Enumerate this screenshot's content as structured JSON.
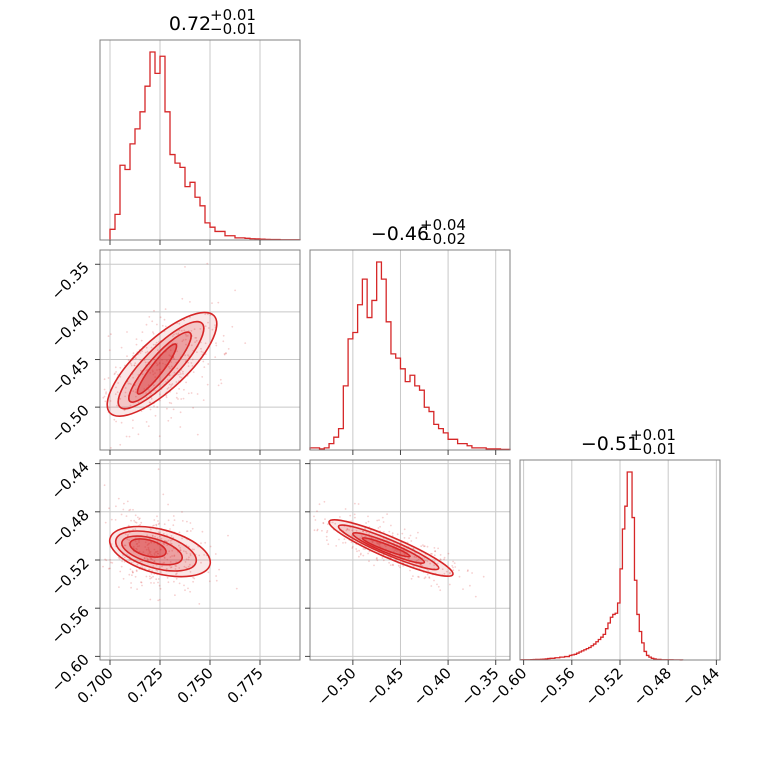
{
  "chart_data": {
    "type": "corner",
    "color": "#d62728",
    "parameters": [
      {
        "title": "0.72",
        "up": "+0.01",
        "down": "−0.01",
        "range": [
          0.695,
          0.795
        ]
      },
      {
        "title": "−0.46",
        "up": "+0.04",
        "down": "−0.02",
        "range": [
          -0.545,
          -0.335
        ]
      },
      {
        "title": "−0.51",
        "up": "+0.01",
        "down": "−0.01",
        "range": [
          -0.603,
          -0.437
        ]
      }
    ],
    "ticks": [
      {
        "values": [
          0.7,
          0.725,
          0.75,
          0.775
        ],
        "labels": [
          "0.700",
          "0.725",
          "0.750",
          "0.775"
        ]
      },
      {
        "values": [
          -0.5,
          -0.45,
          -0.4,
          -0.35
        ],
        "labels": [
          "−0.50",
          "−0.45",
          "−0.40",
          "−0.35"
        ]
      },
      {
        "values": [
          -0.6,
          -0.56,
          -0.52,
          -0.48,
          -0.44
        ],
        "labels": [
          "−0.60",
          "−0.56",
          "−0.52",
          "−0.48",
          "−0.44"
        ]
      }
    ],
    "histograms": [
      {
        "param": 0,
        "bin_width": 0.0025,
        "x": [
          0.7,
          0.7025,
          0.705,
          0.7075,
          0.71,
          0.7125,
          0.715,
          0.7175,
          0.72,
          0.7225,
          0.725,
          0.7275,
          0.73,
          0.7325,
          0.735,
          0.7375,
          0.74,
          0.7425,
          0.745,
          0.7475,
          0.75,
          0.7525,
          0.755,
          0.7575,
          0.76,
          0.7625,
          0.765,
          0.7675,
          0.77,
          0.7725,
          0.775,
          0.7775,
          0.78,
          0.7825,
          0.785,
          0.7875,
          0.79,
          0.7925
        ],
        "counts": [
          5,
          12,
          35,
          33,
          45,
          52,
          60,
          72,
          88,
          78,
          86,
          60,
          40,
          36,
          34,
          25,
          27,
          20,
          16,
          8,
          6,
          4,
          4,
          2,
          2,
          1,
          1,
          0.8,
          0.6,
          0.5,
          0.4,
          0.3,
          0.2,
          0.2,
          0.1,
          0.1,
          0.1,
          0.1
        ]
      },
      {
        "param": 1,
        "bin_width": 0.005,
        "x": [
          -0.545,
          -0.54,
          -0.535,
          -0.53,
          -0.525,
          -0.52,
          -0.515,
          -0.51,
          -0.505,
          -0.5,
          -0.495,
          -0.49,
          -0.485,
          -0.48,
          -0.475,
          -0.47,
          -0.465,
          -0.46,
          -0.455,
          -0.45,
          -0.445,
          -0.44,
          -0.435,
          -0.43,
          -0.425,
          -0.42,
          -0.415,
          -0.41,
          -0.405,
          -0.4,
          -0.395,
          -0.39,
          -0.385,
          -0.38,
          -0.375,
          -0.37,
          -0.365,
          -0.36,
          -0.355,
          -0.35,
          -0.345,
          -0.34
        ],
        "counts": [
          1,
          1,
          0.5,
          1,
          3,
          6,
          10,
          30,
          52,
          55,
          68,
          80,
          62,
          70,
          88,
          80,
          60,
          45,
          43,
          38,
          32,
          35,
          30,
          28,
          20,
          18,
          12,
          10,
          8,
          5,
          5,
          3,
          3,
          2,
          1,
          1,
          1,
          0.5,
          0.5,
          0.5,
          0.3,
          0.3
        ]
      },
      {
        "param": 2,
        "bin_width": 0.002,
        "x": [
          -0.602,
          -0.6,
          -0.598,
          -0.596,
          -0.594,
          -0.592,
          -0.59,
          -0.588,
          -0.586,
          -0.584,
          -0.582,
          -0.58,
          -0.578,
          -0.576,
          -0.574,
          -0.572,
          -0.57,
          -0.568,
          -0.566,
          -0.564,
          -0.562,
          -0.56,
          -0.558,
          -0.556,
          -0.554,
          -0.552,
          -0.55,
          -0.548,
          -0.546,
          -0.544,
          -0.542,
          -0.54,
          -0.538,
          -0.536,
          -0.534,
          -0.532,
          -0.53,
          -0.528,
          -0.526,
          -0.524,
          -0.522,
          -0.52,
          -0.518,
          -0.516,
          -0.514,
          -0.512,
          -0.51,
          -0.508,
          -0.506,
          -0.504,
          -0.502,
          -0.5,
          -0.498,
          -0.496,
          -0.494,
          -0.492,
          -0.49,
          -0.488,
          -0.486,
          -0.484,
          -0.482,
          -0.48,
          -0.478,
          -0.476,
          -0.474,
          -0.472,
          -0.47
        ],
        "counts": [
          0.3,
          0.3,
          0.5,
          0.5,
          0.6,
          0.8,
          1,
          1,
          1.2,
          1.5,
          2,
          2.5,
          3,
          3,
          4,
          4,
          5,
          5,
          6,
          6,
          8,
          9,
          10,
          12,
          14,
          16,
          18,
          20,
          22,
          25,
          28,
          32,
          36,
          40,
          45,
          55,
          65,
          75,
          80,
          82,
          100,
          160,
          230,
          270,
          330,
          330,
          250,
          140,
          80,
          50,
          30,
          15,
          8,
          5,
          3,
          2,
          1,
          1,
          0.5,
          0.5,
          0.3,
          0.3,
          0.3,
          0.2,
          0.2,
          0.2,
          0.1
        ]
      }
    ],
    "ellipses": [
      {
        "x_param": 0,
        "y_param": 1,
        "center": [
          0.725,
          -0.46
        ],
        "levels": [
          {
            "axis_x": [
              0.7,
              -0.506
            ],
            "axis_y": [
              0.752,
              -0.404
            ],
            "width": 0.0125
          },
          {
            "axis_x": [
              0.705,
              -0.5
            ],
            "axis_y": [
              0.746,
              -0.412
            ],
            "width": 0.0085
          },
          {
            "axis_x": [
              0.71,
              -0.494
            ],
            "axis_y": [
              0.74,
              -0.422
            ],
            "width": 0.0055
          },
          {
            "axis_x": [
              0.714,
              -0.486
            ],
            "axis_y": [
              0.733,
              -0.434
            ],
            "width": 0.003
          }
        ]
      },
      {
        "x_param": 0,
        "y_param": 2,
        "center": [
          0.722,
          -0.512
        ],
        "levels": [
          {
            "axis_x": [
              0.7,
              -0.502
            ],
            "axis_y": [
              0.75,
              -0.524
            ],
            "width": 0.011
          },
          {
            "axis_x": [
              0.703,
              -0.503
            ],
            "axis_y": [
              0.743,
              -0.522
            ],
            "width": 0.0085
          },
          {
            "axis_x": [
              0.706,
              -0.505
            ],
            "axis_y": [
              0.736,
              -0.519
            ],
            "width": 0.006
          },
          {
            "axis_x": [
              0.71,
              -0.506
            ],
            "axis_y": [
              0.728,
              -0.514
            ],
            "width": 0.004
          }
        ]
      },
      {
        "x_param": 1,
        "y_param": 2,
        "center": [
          -0.46,
          -0.51
        ],
        "levels": [
          {
            "axis_x": [
              -0.525,
              -0.488
            ],
            "axis_y": [
              -0.395,
              -0.532
            ],
            "width": 0.011
          },
          {
            "axis_x": [
              -0.515,
              -0.492
            ],
            "axis_y": [
              -0.41,
              -0.527
            ],
            "width": 0.008
          },
          {
            "axis_x": [
              -0.5,
              -0.498
            ],
            "axis_y": [
              -0.425,
              -0.522
            ],
            "width": 0.0055
          },
          {
            "axis_x": [
              -0.49,
              -0.502
            ],
            "axis_y": [
              -0.44,
              -0.517
            ],
            "width": 0.003
          }
        ]
      }
    ]
  }
}
